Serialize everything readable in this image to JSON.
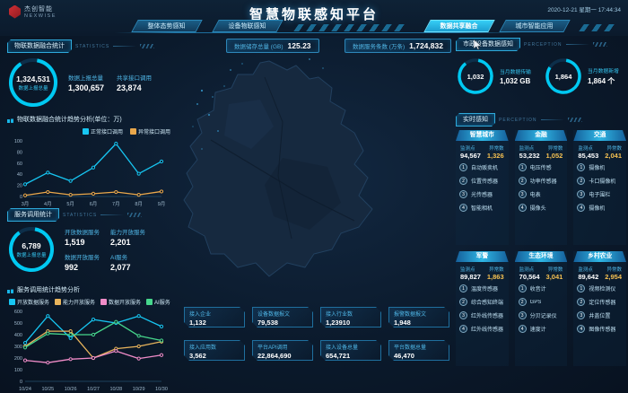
{
  "header": {
    "logo_title": "杰创智能",
    "logo_subtitle": "NEXWISE",
    "title": "智慧物联感知平台",
    "datetime": "2020-12-21 星期一 17:44:34",
    "tabs": [
      {
        "label": "整体态势感知",
        "active": false
      },
      {
        "label": "设备物联感知",
        "active": false
      },
      {
        "label": "数据共享融合",
        "active": true
      },
      {
        "label": "城市智能应用",
        "active": false
      }
    ]
  },
  "left": {
    "fusion": {
      "title": "物联数据融合统计",
      "subtitle": "STATISTICS",
      "ring": {
        "value": "1,324,531",
        "label": "数据上报总量"
      },
      "stats": [
        {
          "label": "数据上报总量",
          "value": "1,300,657"
        },
        {
          "label": "共享接口调用",
          "value": "23,874"
        }
      ]
    },
    "service": {
      "title": "服务调用统计",
      "subtitle": "STATISTICS",
      "ring": {
        "value": "6,789",
        "label": "数据上报总量"
      },
      "stats": [
        {
          "label": "开放数据服务",
          "value": "1,519"
        },
        {
          "label": "能力开放服务",
          "value": "2,201"
        },
        {
          "label": "数据开放服务",
          "value": "992"
        },
        {
          "label": "AI服务",
          "value": "2,077"
        }
      ]
    }
  },
  "center": {
    "top_stats": [
      {
        "label": "数据储存总量 (GB)",
        "value": "125.23"
      },
      {
        "label": "数据服务条数 (万条)",
        "value": "1,724,832"
      }
    ],
    "bottom_stats": [
      {
        "label": "接入企业",
        "value": "1,132"
      },
      {
        "label": "设备数据报文",
        "value": "79,538"
      },
      {
        "label": "接入行业数",
        "value": "1,23910"
      },
      {
        "label": "报警数据报文",
        "value": "1,948"
      },
      {
        "label": "接入应用数",
        "value": "3,562"
      },
      {
        "label": "平台API调用",
        "value": "22,864,690"
      },
      {
        "label": "接入设备总量",
        "value": "654,721"
      },
      {
        "label": "平台数据总量",
        "value": "46,470"
      }
    ]
  },
  "right": {
    "municipal": {
      "title": "市政设备数据感知",
      "subtitle": "PERCEPTION",
      "rings": [
        {
          "value": "1,032",
          "label": "当月数据传输",
          "detail": "1,032 GB"
        },
        {
          "value": "1,864",
          "label": "当月数据新增",
          "detail": "1,864 个"
        }
      ]
    },
    "realtime": {
      "title": "实时感知",
      "subtitle": "PERCEPTION",
      "points_label": "监测点",
      "abnormal_label": "异常数",
      "item_numbers": [
        "1",
        "2",
        "3",
        "4"
      ],
      "cards": [
        {
          "title": "智慧城市",
          "points": "94,567",
          "abnormal": "1,326",
          "items": [
            "自动贩卖机",
            "位置传感器",
            "光传感器",
            "智能相机"
          ]
        },
        {
          "title": "金融",
          "points": "53,232",
          "abnormal": "1,052",
          "items": [
            "电压传感",
            "功率传感器",
            "电表",
            "摄像头"
          ]
        },
        {
          "title": "交通",
          "points": "85,453",
          "abnormal": "2,041",
          "items": [
            "摄像机",
            "卡口摄像机",
            "电子围栏",
            "摄像机"
          ]
        },
        {
          "title": "军警",
          "points": "89,827",
          "abnormal": "1,863",
          "items": [
            "温度传感器",
            "综合感知终端",
            "红外线传感器",
            "红外线传感器"
          ]
        },
        {
          "title": "生态环境",
          "points": "70,564",
          "abnormal": "3,041",
          "items": [
            "收音计",
            "GPS",
            "分贝记录仪",
            "速度计"
          ]
        },
        {
          "title": "乡村农业",
          "points": "89,642",
          "abnormal": "2,954",
          "items": [
            "视频检测仪",
            "定位传感器",
            "井盖位置",
            "图像传感器"
          ]
        }
      ]
    }
  },
  "chart_data": [
    {
      "type": "line",
      "title": "物联数据融合统计趋势分析(单位：万)",
      "x": [
        "3月",
        "4月",
        "5月",
        "6月",
        "7月",
        "8月",
        "9月"
      ],
      "ylim": [
        0,
        100
      ],
      "yticks": [
        0,
        20,
        40,
        60,
        80,
        100
      ],
      "grid": false,
      "legend_position": "top-right",
      "series": [
        {
          "name": "正常接口调用",
          "color": "#17c6f2",
          "values": [
            22,
            43,
            28,
            52,
            95,
            41,
            63
          ]
        },
        {
          "name": "异常接口调用",
          "color": "#e9a74b",
          "values": [
            2,
            8,
            3,
            5,
            8,
            3,
            9
          ]
        }
      ]
    },
    {
      "type": "line",
      "title": "服务调用统计趋势分析",
      "x": [
        "10/24",
        "10/25",
        "10/26",
        "10/27",
        "10/28",
        "10/29",
        "10/30"
      ],
      "ylim": [
        0,
        600
      ],
      "yticks": [
        0,
        100,
        200,
        300,
        400,
        500,
        600
      ],
      "grid": false,
      "legend_position": "top-left",
      "series": [
        {
          "name": "开放数据服务",
          "color": "#17c6f2",
          "values": [
            330,
            560,
            370,
            530,
            500,
            560,
            470
          ]
        },
        {
          "name": "能力开放服务",
          "color": "#e8b45c",
          "values": [
            300,
            430,
            430,
            200,
            280,
            300,
            340
          ]
        },
        {
          "name": "数据开放服务",
          "color": "#f08cc8",
          "values": [
            180,
            160,
            190,
            200,
            260,
            195,
            225
          ]
        },
        {
          "name": "AI服务",
          "color": "#46d68c",
          "values": [
            290,
            410,
            400,
            400,
            510,
            390,
            350
          ]
        }
      ]
    }
  ]
}
